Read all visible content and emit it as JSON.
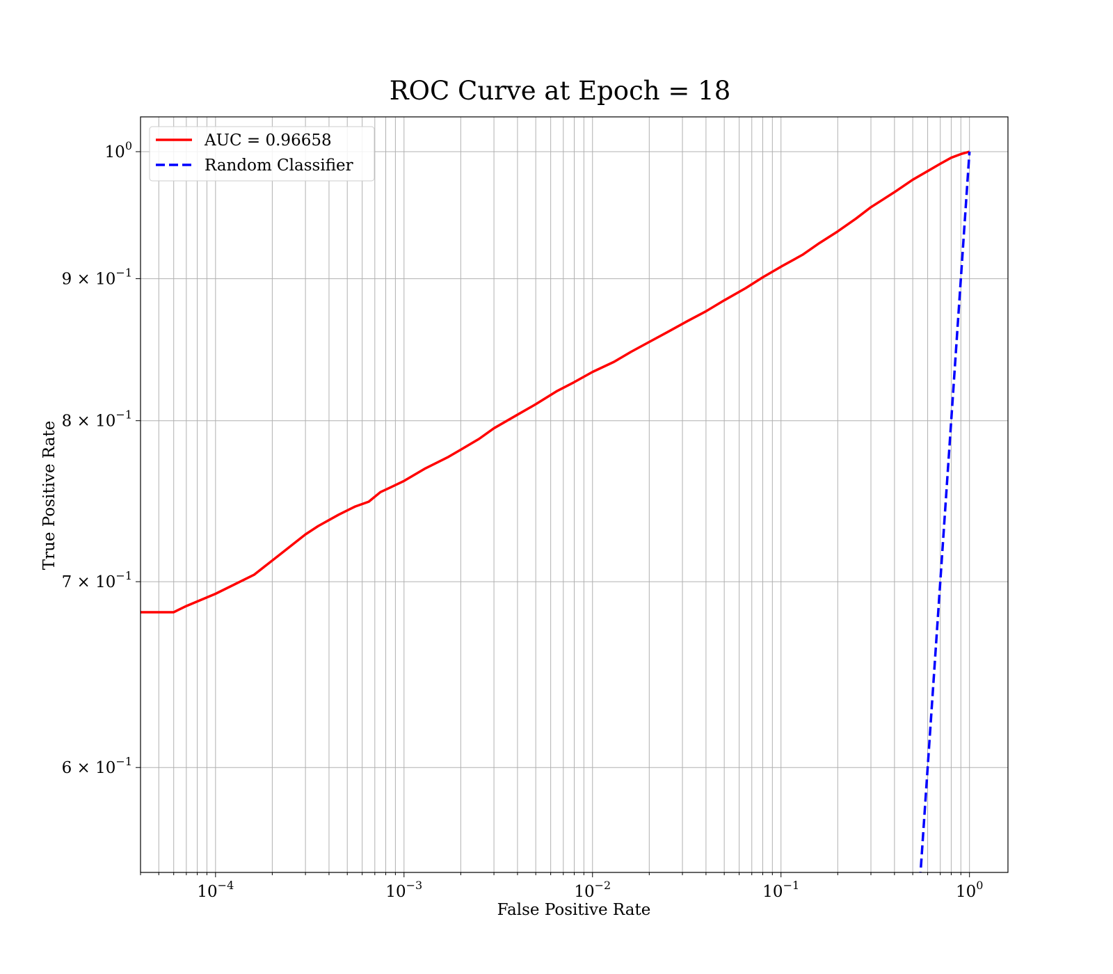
{
  "chart_data": {
    "type": "line",
    "title": "ROC Curve at Epoch = 18",
    "xlabel": "False Positive Rate",
    "ylabel": "True Positive Rate",
    "xscale": "log",
    "yscale": "log",
    "xlim": [
      4e-05,
      1.6
    ],
    "ylim": [
      0.55,
      1.0
    ],
    "grid": "both-major-and-minor",
    "legend_position": "top-left",
    "x_tick_labels": [
      {
        "value": 0.0001,
        "base": "10",
        "exp": "−4"
      },
      {
        "value": 0.001,
        "base": "10",
        "exp": "−3"
      },
      {
        "value": 0.01,
        "base": "10",
        "exp": "−2"
      },
      {
        "value": 0.1,
        "base": "10",
        "exp": "−1"
      },
      {
        "value": 1,
        "base": "10",
        "exp": "0"
      }
    ],
    "y_tick_labels": [
      {
        "value": 1.0,
        "mant": "",
        "base": "10",
        "exp": "0"
      },
      {
        "value": 0.9,
        "mant": "9 × ",
        "base": "10",
        "exp": "−1"
      },
      {
        "value": 0.8,
        "mant": "8 × ",
        "base": "10",
        "exp": "−1"
      },
      {
        "value": 0.7,
        "mant": "7 × ",
        "base": "10",
        "exp": "−1"
      },
      {
        "value": 0.6,
        "mant": "6 × ",
        "base": "10",
        "exp": "−1"
      }
    ],
    "series": [
      {
        "name": "AUC = 0.96658",
        "color": "#ff0000",
        "dash": "solid",
        "x": [
          4e-05,
          6e-05,
          7e-05,
          0.0001,
          0.00016,
          0.00022,
          0.0003,
          0.00035,
          0.00045,
          0.00055,
          0.00065,
          0.00075,
          0.00085,
          0.001,
          0.0013,
          0.0017,
          0.002,
          0.0025,
          0.003,
          0.004,
          0.005,
          0.0065,
          0.008,
          0.01,
          0.013,
          0.016,
          0.02,
          0.025,
          0.032,
          0.04,
          0.05,
          0.065,
          0.08,
          0.1,
          0.13,
          0.16,
          0.2,
          0.25,
          0.3,
          0.4,
          0.5,
          0.6,
          0.7,
          0.8,
          0.9,
          1.0
        ],
        "y": [
          0.6825,
          0.6825,
          0.686,
          0.693,
          0.704,
          0.716,
          0.728,
          0.733,
          0.74,
          0.745,
          0.748,
          0.754,
          0.757,
          0.761,
          0.769,
          0.776,
          0.781,
          0.788,
          0.795,
          0.804,
          0.811,
          0.82,
          0.826,
          0.833,
          0.84,
          0.847,
          0.854,
          0.861,
          0.869,
          0.876,
          0.884,
          0.893,
          0.901,
          0.909,
          0.918,
          0.927,
          0.936,
          0.946,
          0.955,
          0.967,
          0.977,
          0.984,
          0.99,
          0.995,
          0.998,
          1.0
        ]
      },
      {
        "name": "Random Classifier",
        "color": "#0000ff",
        "dash": "dashed",
        "x": [
          0.0,
          0.55,
          0.6,
          0.7,
          0.8,
          0.9,
          1.0
        ],
        "y": [
          0.0,
          0.55,
          0.6,
          0.7,
          0.8,
          0.9,
          1.0
        ]
      }
    ]
  }
}
